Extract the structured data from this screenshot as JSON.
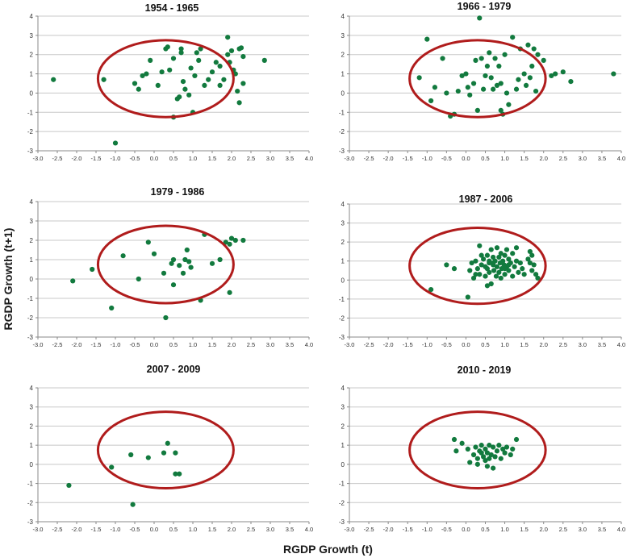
{
  "figure": {
    "xlabel": "RGDP Growth (t)",
    "ylabel": "RGDP Growth (t+1)"
  },
  "colors": {
    "point": "#127a3e",
    "ellipse": "#b01c1c",
    "grid": "#c8c8c8",
    "axis": "#8a8a8a",
    "tick": "#333333"
  },
  "chart_data": [
    {
      "type": "scatter",
      "title": "1954 - 1965",
      "xlim": [
        -3.0,
        4.0
      ],
      "ylim": [
        -3,
        4
      ],
      "x_ticks": [
        "-3.0",
        "-2.5",
        "-2.0",
        "-1.5",
        "-1.0",
        "-0.5",
        "0.0",
        "0.5",
        "1.0",
        "1.5",
        "2.0",
        "2.5",
        "3.0",
        "3.5",
        "4.0"
      ],
      "y_ticks": [
        "4",
        "3",
        "2",
        "1",
        "0",
        "-1",
        "-2",
        "-3"
      ],
      "ellipse": {
        "cx": 0.3,
        "cy": 0.75,
        "rx": 1.75,
        "ry": 2.0
      },
      "points": [
        [
          -2.6,
          0.7
        ],
        [
          -1.3,
          0.7
        ],
        [
          -1.0,
          -2.6
        ],
        [
          -0.5,
          0.5
        ],
        [
          -0.4,
          0.2
        ],
        [
          -0.3,
          0.9
        ],
        [
          -0.2,
          1.0
        ],
        [
          -0.1,
          1.7
        ],
        [
          0.1,
          0.4
        ],
        [
          0.2,
          1.1
        ],
        [
          0.3,
          2.3
        ],
        [
          0.35,
          2.4
        ],
        [
          0.4,
          1.2
        ],
        [
          0.5,
          1.8
        ],
        [
          0.5,
          -1.25
        ],
        [
          0.6,
          -0.3
        ],
        [
          0.65,
          -0.2
        ],
        [
          0.7,
          2.3
        ],
        [
          0.7,
          2.1
        ],
        [
          0.75,
          0.6
        ],
        [
          0.8,
          0.2
        ],
        [
          0.9,
          -0.1
        ],
        [
          0.95,
          1.3
        ],
        [
          1.0,
          -1.0
        ],
        [
          1.05,
          0.9
        ],
        [
          1.1,
          2.1
        ],
        [
          1.15,
          1.7
        ],
        [
          1.2,
          2.3
        ],
        [
          1.3,
          0.4
        ],
        [
          1.4,
          0.7
        ],
        [
          1.5,
          1.1
        ],
        [
          1.6,
          1.6
        ],
        [
          1.7,
          0.4
        ],
        [
          1.7,
          1.4
        ],
        [
          1.8,
          0.7
        ],
        [
          1.9,
          2.9
        ],
        [
          1.9,
          2.0
        ],
        [
          1.95,
          1.6
        ],
        [
          2.0,
          2.2
        ],
        [
          2.05,
          1.2
        ],
        [
          2.1,
          1.0
        ],
        [
          2.15,
          0.1
        ],
        [
          2.2,
          2.3
        ],
        [
          2.2,
          -0.5
        ],
        [
          2.25,
          2.35
        ],
        [
          2.3,
          1.9
        ],
        [
          2.3,
          0.5
        ],
        [
          2.85,
          1.7
        ]
      ]
    },
    {
      "type": "scatter",
      "title": "1966 - 1979",
      "xlim": [
        -3.0,
        4.0
      ],
      "ylim": [
        -3,
        4
      ],
      "x_ticks": [
        "-3.0",
        "-2.5",
        "-2.0",
        "-1.5",
        "-1.0",
        "-0.5",
        "0.0",
        "0.5",
        "1.0",
        "1.5",
        "2.0",
        "2.5",
        "3.0",
        "3.5",
        "4.0"
      ],
      "y_ticks": [
        "4",
        "3",
        "2",
        "1",
        "0",
        "-1",
        "-2",
        "-3"
      ],
      "ellipse": {
        "cx": 0.3,
        "cy": 0.75,
        "rx": 1.75,
        "ry": 2.0
      },
      "points": [
        [
          -1.2,
          0.8
        ],
        [
          -1.0,
          2.8
        ],
        [
          -0.9,
          -0.4
        ],
        [
          -0.8,
          0.3
        ],
        [
          -0.6,
          1.8
        ],
        [
          -0.5,
          0.0
        ],
        [
          -0.4,
          -1.2
        ],
        [
          -0.3,
          -1.1
        ],
        [
          -0.2,
          0.1
        ],
        [
          -0.1,
          0.9
        ],
        [
          0.0,
          1.0
        ],
        [
          0.05,
          0.3
        ],
        [
          0.1,
          -0.1
        ],
        [
          0.2,
          0.5
        ],
        [
          0.25,
          1.7
        ],
        [
          0.3,
          -0.9
        ],
        [
          0.35,
          3.9
        ],
        [
          0.4,
          1.8
        ],
        [
          0.45,
          0.2
        ],
        [
          0.5,
          0.9
        ],
        [
          0.55,
          1.4
        ],
        [
          0.6,
          2.1
        ],
        [
          0.65,
          0.8
        ],
        [
          0.7,
          0.2
        ],
        [
          0.75,
          1.8
        ],
        [
          0.8,
          0.4
        ],
        [
          0.85,
          1.4
        ],
        [
          0.9,
          -0.9
        ],
        [
          0.9,
          0.5
        ],
        [
          0.95,
          -1.1
        ],
        [
          1.0,
          2.0
        ],
        [
          1.05,
          0.0
        ],
        [
          1.1,
          -0.6
        ],
        [
          1.2,
          2.9
        ],
        [
          1.3,
          0.2
        ],
        [
          1.35,
          0.7
        ],
        [
          1.4,
          2.3
        ],
        [
          1.5,
          1.0
        ],
        [
          1.55,
          0.4
        ],
        [
          1.6,
          2.5
        ],
        [
          1.65,
          0.8
        ],
        [
          1.7,
          1.4
        ],
        [
          1.75,
          2.3
        ],
        [
          1.8,
          0.1
        ],
        [
          1.85,
          2.0
        ],
        [
          2.0,
          1.7
        ],
        [
          2.2,
          0.9
        ],
        [
          2.3,
          1.0
        ],
        [
          2.5,
          1.1
        ],
        [
          2.7,
          0.6
        ],
        [
          3.8,
          1.0
        ]
      ]
    },
    {
      "type": "scatter",
      "title": "1979 - 1986",
      "xlim": [
        -3.0,
        4.0
      ],
      "ylim": [
        -3,
        4
      ],
      "x_ticks": [
        "-3.0",
        "-2.5",
        "-2.0",
        "-1.5",
        "-1.0",
        "-0.5",
        "0.0",
        "0.5",
        "1.0",
        "1.5",
        "2.0",
        "2.5",
        "3.0",
        "3.5",
        "4.0"
      ],
      "y_ticks": [
        "4",
        "3",
        "2",
        "1",
        "0",
        "-1",
        "-2",
        "-3"
      ],
      "ellipse": {
        "cx": 0.3,
        "cy": 0.75,
        "rx": 1.75,
        "ry": 2.0
      },
      "points": [
        [
          -2.1,
          -0.1
        ],
        [
          -1.6,
          0.5
        ],
        [
          -1.1,
          -1.5
        ],
        [
          -0.8,
          1.2
        ],
        [
          -0.4,
          0.0
        ],
        [
          -0.15,
          1.9
        ],
        [
          0.0,
          1.3
        ],
        [
          0.25,
          0.3
        ],
        [
          0.3,
          -2.0
        ],
        [
          0.45,
          0.8
        ],
        [
          0.5,
          1.0
        ],
        [
          0.5,
          -0.3
        ],
        [
          0.65,
          0.7
        ],
        [
          0.75,
          0.3
        ],
        [
          0.8,
          1.0
        ],
        [
          0.85,
          1.5
        ],
        [
          0.9,
          0.9
        ],
        [
          0.95,
          0.6
        ],
        [
          1.2,
          -1.1
        ],
        [
          1.3,
          2.3
        ],
        [
          1.5,
          0.8
        ],
        [
          1.7,
          1.0
        ],
        [
          1.85,
          1.9
        ],
        [
          1.95,
          1.8
        ],
        [
          1.95,
          -0.7
        ],
        [
          2.0,
          2.1
        ],
        [
          2.1,
          2.0
        ],
        [
          2.3,
          2.0
        ]
      ]
    },
    {
      "type": "scatter",
      "title": "1987 - 2006",
      "xlim": [
        -3.0,
        4.0
      ],
      "ylim": [
        -3,
        4
      ],
      "x_ticks": [
        "-3.0",
        "-2.5",
        "-2.0",
        "-1.5",
        "-1.0",
        "-0.5",
        "0.0",
        "0.5",
        "1.0",
        "1.5",
        "2.0",
        "2.5",
        "3.0",
        "3.5",
        "4.0"
      ],
      "y_ticks": [
        "4",
        "3",
        "2",
        "1",
        "0",
        "-1",
        "-2",
        "-3"
      ],
      "ellipse": {
        "cx": 0.3,
        "cy": 0.75,
        "rx": 1.75,
        "ry": 2.0
      },
      "points": [
        [
          -0.9,
          -0.5
        ],
        [
          -0.5,
          0.8
        ],
        [
          -0.3,
          0.6
        ],
        [
          0.05,
          -0.9
        ],
        [
          0.1,
          0.5
        ],
        [
          0.15,
          0.9
        ],
        [
          0.2,
          0.1
        ],
        [
          0.25,
          1.0
        ],
        [
          0.3,
          0.6
        ],
        [
          0.35,
          1.8
        ],
        [
          0.35,
          0.3
        ],
        [
          0.4,
          0.8
        ],
        [
          0.45,
          1.1
        ],
        [
          0.5,
          0.2
        ],
        [
          0.5,
          0.7
        ],
        [
          0.55,
          1.3
        ],
        [
          0.55,
          -0.3
        ],
        [
          0.6,
          0.9
        ],
        [
          0.6,
          0.4
        ],
        [
          0.65,
          1.6
        ],
        [
          0.65,
          -0.2
        ],
        [
          0.7,
          0.8
        ],
        [
          0.7,
          1.2
        ],
        [
          0.72,
          0.5
        ],
        [
          0.75,
          1.0
        ],
        [
          0.78,
          0.2
        ],
        [
          0.8,
          1.7
        ],
        [
          0.8,
          0.7
        ],
        [
          0.85,
          1.2
        ],
        [
          0.85,
          0.4
        ],
        [
          0.88,
          0.9
        ],
        [
          0.9,
          0.1
        ],
        [
          0.9,
          1.4
        ],
        [
          0.92,
          0.6
        ],
        [
          0.95,
          1.0
        ],
        [
          0.98,
          0.8
        ],
        [
          1.0,
          1.3
        ],
        [
          1.0,
          0.3
        ],
        [
          1.05,
          0.7
        ],
        [
          1.05,
          1.6
        ],
        [
          1.1,
          1.1
        ],
        [
          1.1,
          0.5
        ],
        [
          1.15,
          0.9
        ],
        [
          1.2,
          0.2
        ],
        [
          1.2,
          1.4
        ],
        [
          1.25,
          0.7
        ],
        [
          1.3,
          1.7
        ],
        [
          1.3,
          1.0
        ],
        [
          1.35,
          0.4
        ],
        [
          1.4,
          0.9
        ],
        [
          1.45,
          0.6
        ],
        [
          1.5,
          0.3
        ],
        [
          1.6,
          1.1
        ],
        [
          1.65,
          0.9
        ],
        [
          1.7,
          1.3
        ],
        [
          1.7,
          0.5
        ],
        [
          1.75,
          0.8
        ],
        [
          1.8,
          0.3
        ],
        [
          1.85,
          0.1
        ],
        [
          1.65,
          1.5
        ],
        [
          0.25,
          0.3
        ],
        [
          0.4,
          1.3
        ],
        [
          0.6,
          1.0
        ],
        [
          0.7,
          0.9
        ],
        [
          1.0,
          0.6
        ],
        [
          1.1,
          0.8
        ],
        [
          0.55,
          0.6
        ]
      ]
    },
    {
      "type": "scatter",
      "title": "2007 - 2009",
      "xlim": [
        -3.0,
        4.0
      ],
      "ylim": [
        -3,
        4
      ],
      "x_ticks": [
        "-3.0",
        "-2.5",
        "-2.0",
        "-1.5",
        "-1.0",
        "-0.5",
        "0.0",
        "0.5",
        "1.0",
        "1.5",
        "2.0",
        "2.5",
        "3.0",
        "3.5",
        "4.0"
      ],
      "y_ticks": [
        "4",
        "3",
        "2",
        "1",
        "0",
        "-1",
        "-2",
        "-3"
      ],
      "ellipse": {
        "cx": 0.3,
        "cy": 0.75,
        "rx": 1.75,
        "ry": 2.0
      },
      "points": [
        [
          -2.2,
          -1.1
        ],
        [
          -1.1,
          -0.15
        ],
        [
          -0.6,
          0.5
        ],
        [
          -0.55,
          -2.1
        ],
        [
          -0.15,
          0.35
        ],
        [
          0.25,
          0.6
        ],
        [
          0.35,
          1.1
        ],
        [
          0.55,
          0.6
        ],
        [
          0.55,
          -0.5
        ],
        [
          0.65,
          -0.5
        ]
      ]
    },
    {
      "type": "scatter",
      "title": "2010 - 2019",
      "xlim": [
        -3.0,
        4.0
      ],
      "ylim": [
        -3,
        4
      ],
      "x_ticks": [
        "-3.0",
        "-2.5",
        "-2.0",
        "-1.5",
        "-1.0",
        "-0.5",
        "0.0",
        "0.5",
        "1.0",
        "1.5",
        "2.0",
        "2.5",
        "3.0",
        "3.5",
        "4.0"
      ],
      "y_ticks": [
        "4",
        "3",
        "2",
        "1",
        "0",
        "-1",
        "-2",
        "-3"
      ],
      "ellipse": {
        "cx": 0.3,
        "cy": 0.75,
        "rx": 1.75,
        "ry": 2.0
      },
      "points": [
        [
          -0.3,
          1.3
        ],
        [
          -0.25,
          0.7
        ],
        [
          -0.1,
          1.1
        ],
        [
          0.05,
          0.8
        ],
        [
          0.1,
          0.1
        ],
        [
          0.2,
          0.5
        ],
        [
          0.25,
          0.9
        ],
        [
          0.3,
          0.3
        ],
        [
          0.35,
          0.7
        ],
        [
          0.4,
          1.0
        ],
        [
          0.45,
          0.4
        ],
        [
          0.5,
          0.2
        ],
        [
          0.5,
          0.8
        ],
        [
          0.55,
          0.6
        ],
        [
          0.6,
          1.0
        ],
        [
          0.6,
          0.3
        ],
        [
          0.65,
          0.5
        ],
        [
          0.7,
          -0.2
        ],
        [
          0.7,
          0.9
        ],
        [
          0.75,
          0.4
        ],
        [
          0.8,
          0.7
        ],
        [
          0.85,
          1.0
        ],
        [
          0.9,
          0.3
        ],
        [
          0.95,
          0.8
        ],
        [
          1.0,
          0.6
        ],
        [
          1.05,
          0.9
        ],
        [
          1.15,
          0.5
        ],
        [
          1.2,
          0.8
        ],
        [
          1.3,
          1.3
        ],
        [
          0.55,
          -0.1
        ],
        [
          0.4,
          0.6
        ],
        [
          0.3,
          0.0
        ]
      ]
    }
  ]
}
